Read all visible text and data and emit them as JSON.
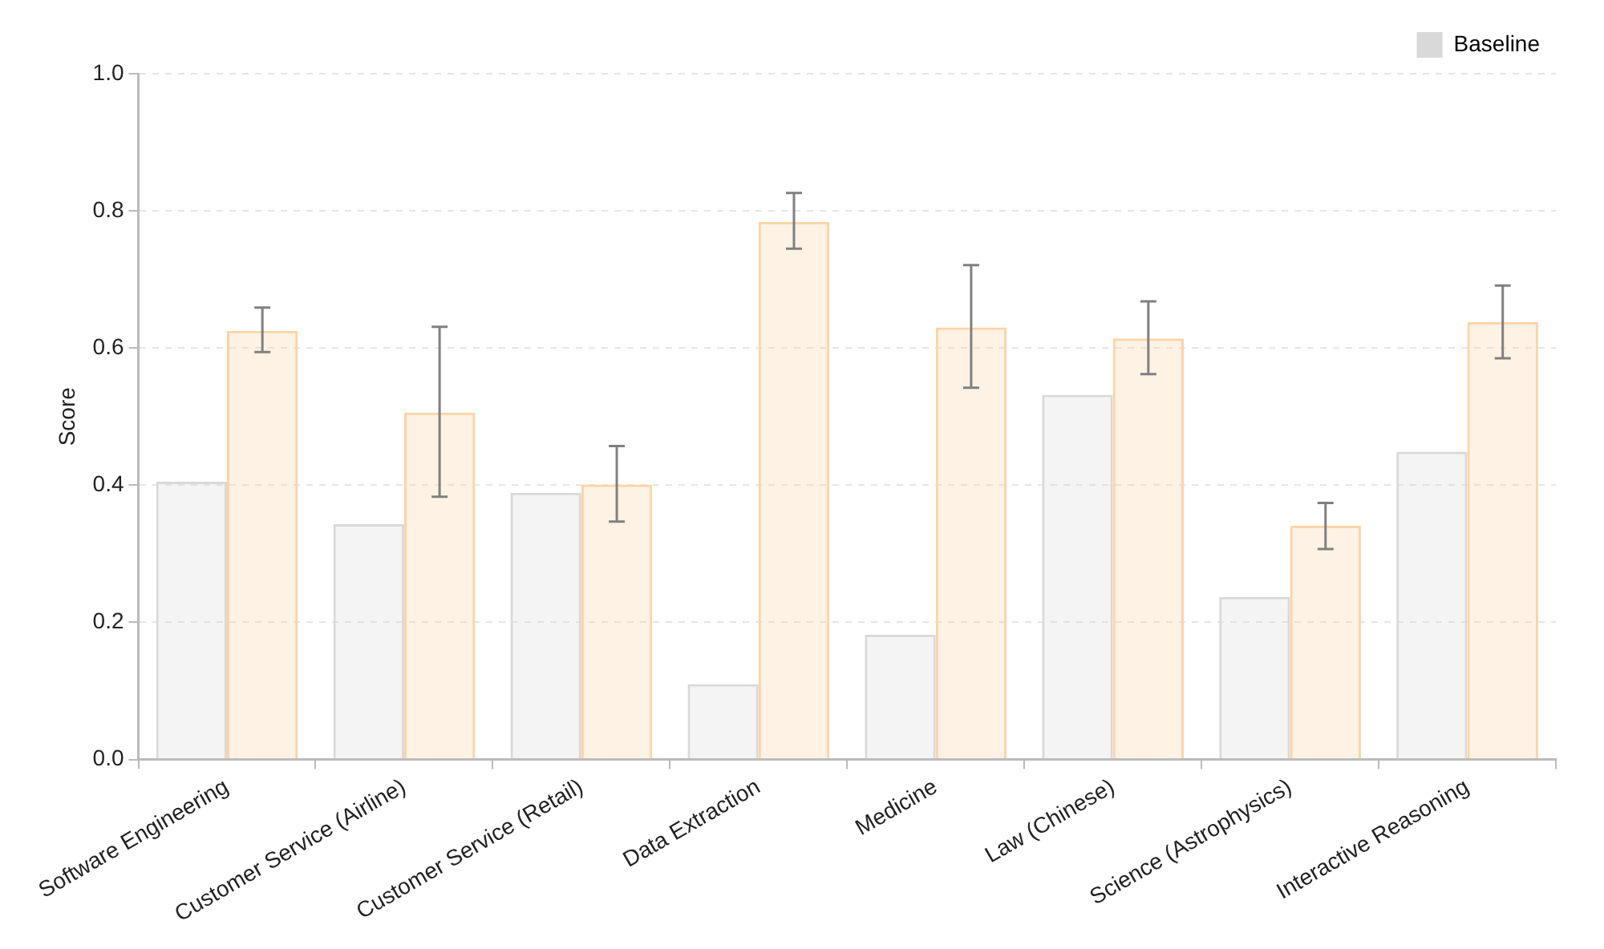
{
  "chart_data": {
    "type": "bar",
    "ylabel": "Score",
    "categories": [
      "Software Engineering",
      "Customer Service (Airline)",
      "Customer Service (Retail)",
      "Data Extraction",
      "Medicine",
      "Law (Chinese)",
      "Science (Astrophysics)",
      "Interactive Reasoning"
    ],
    "series": [
      {
        "name": "Baseline",
        "color": "#d9d9d9",
        "values": [
          0.405,
          0.343,
          0.389,
          0.11,
          0.182,
          0.532,
          0.237,
          0.449
        ]
      },
      {
        "color": "#fdd4a4",
        "values": [
          0.625,
          0.506,
          0.401,
          0.784,
          0.63,
          0.614,
          0.341,
          0.638
        ],
        "errors": [
          [
            0.594,
            0.659
          ],
          [
            0.383,
            0.631
          ],
          [
            0.347,
            0.457
          ],
          [
            0.745,
            0.826
          ],
          [
            0.542,
            0.721
          ],
          [
            0.562,
            0.668
          ],
          [
            0.307,
            0.374
          ],
          [
            0.585,
            0.691
          ]
        ]
      }
    ],
    "ylim": [
      0,
      1
    ],
    "yticks": [
      {
        "value": 0,
        "label": "0.0"
      },
      0.2,
      0.4,
      0.6,
      0.8,
      {
        "value": 1,
        "label": "1.0"
      }
    ],
    "grid": "y",
    "legend": "top right"
  }
}
